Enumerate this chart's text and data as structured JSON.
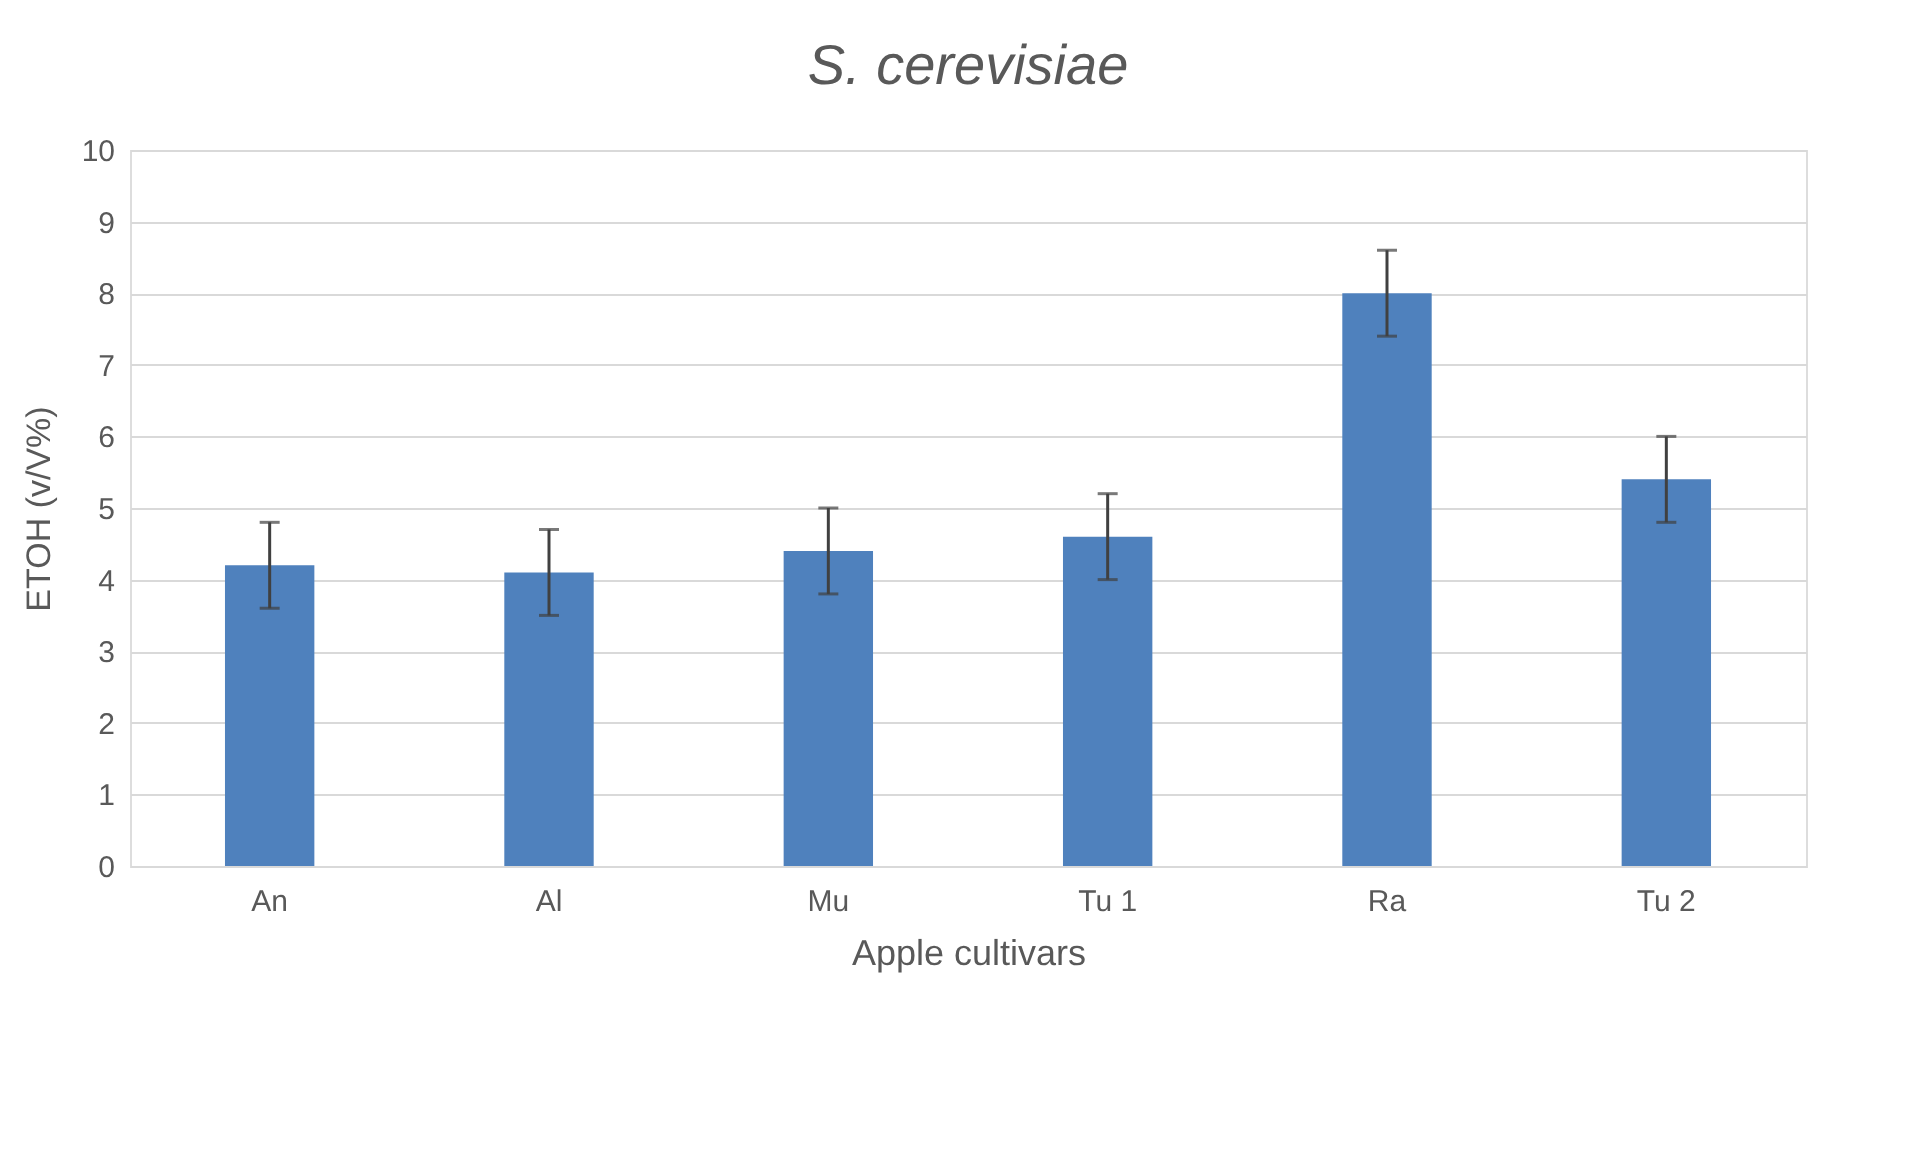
{
  "chart_data": {
    "type": "bar",
    "title": "S. cerevisiae",
    "xlabel": "Apple cultivars",
    "ylabel": "ETOH (v/V%)",
    "categories": [
      "An",
      "Al",
      "Mu",
      "Tu 1",
      "Ra",
      "Tu 2"
    ],
    "values": [
      4.2,
      4.1,
      4.4,
      4.6,
      8.0,
      5.4
    ],
    "errors": [
      0.6,
      0.6,
      0.6,
      0.6,
      0.6,
      0.6
    ],
    "color": "#4f81bd",
    "ylim": [
      0,
      10
    ],
    "yticks": [
      0,
      1,
      2,
      3,
      4,
      5,
      6,
      7,
      8,
      9,
      10
    ],
    "grid": "y"
  }
}
